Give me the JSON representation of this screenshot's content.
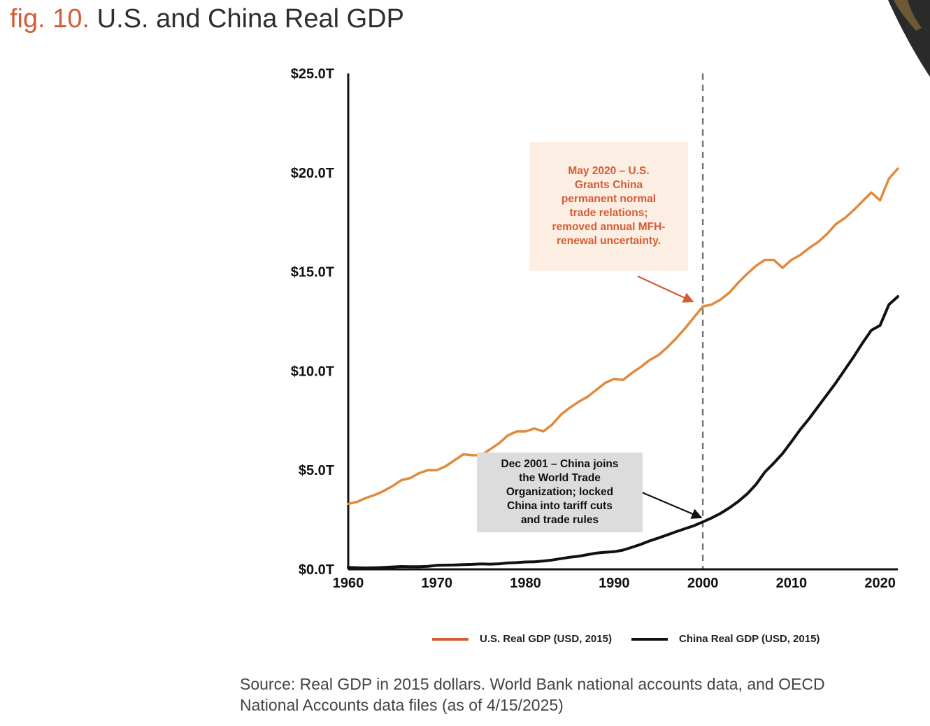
{
  "header": {
    "fig_number": "fig. 10.",
    "title": "U.S. and China Real GDP"
  },
  "colors": {
    "us": "#e08a3c",
    "china": "#111111",
    "accent": "#d35c36"
  },
  "chart_data": {
    "type": "line",
    "title": "U.S. and China Real GDP",
    "xlim": [
      1960,
      2022
    ],
    "ylim": [
      0,
      25
    ],
    "yticks": [
      {
        "value": 0,
        "label": "$0.0T"
      },
      {
        "value": 5,
        "label": "$5.0T"
      },
      {
        "value": 10,
        "label": "$10.0T"
      },
      {
        "value": 15,
        "label": "$15.0T"
      },
      {
        "value": 20,
        "label": "$20.0T"
      },
      {
        "value": 25,
        "label": "$25.0T"
      }
    ],
    "xticks": [
      {
        "value": 1960,
        "label": "1960"
      },
      {
        "value": 1970,
        "label": "1970"
      },
      {
        "value": 1980,
        "label": "1980"
      },
      {
        "value": 1990,
        "label": "1990"
      },
      {
        "value": 2000,
        "label": "2000"
      },
      {
        "value": 2010,
        "label": "2010"
      },
      {
        "value": 2020,
        "label": "2020"
      }
    ],
    "reference_line": {
      "x": 2000,
      "style": "dashed"
    },
    "series": [
      {
        "name": "U.S. Real GDP (USD, 2015)",
        "color": "#e08a3c",
        "x": [
          1960,
          1961,
          1962,
          1963,
          1964,
          1965,
          1966,
          1967,
          1968,
          1969,
          1970,
          1971,
          1972,
          1973,
          1974,
          1975,
          1976,
          1977,
          1978,
          1979,
          1980,
          1981,
          1982,
          1983,
          1984,
          1985,
          1986,
          1987,
          1988,
          1989,
          1990,
          1991,
          1992,
          1993,
          1994,
          1995,
          1996,
          1997,
          1998,
          1999,
          2000,
          2001,
          2002,
          2003,
          2004,
          2005,
          2006,
          2007,
          2008,
          2009,
          2010,
          2011,
          2012,
          2013,
          2014,
          2015,
          2016,
          2017,
          2018,
          2019,
          2020,
          2021,
          2022
        ],
        "values": [
          3.3,
          3.4,
          3.6,
          3.75,
          3.95,
          4.2,
          4.5,
          4.6,
          4.85,
          5.0,
          5.0,
          5.2,
          5.5,
          5.8,
          5.75,
          5.75,
          6.05,
          6.35,
          6.75,
          6.95,
          6.95,
          7.1,
          6.95,
          7.3,
          7.8,
          8.15,
          8.45,
          8.7,
          9.05,
          9.4,
          9.6,
          9.55,
          9.9,
          10.2,
          10.55,
          10.8,
          11.2,
          11.65,
          12.15,
          12.7,
          13.25,
          13.35,
          13.6,
          13.95,
          14.45,
          14.9,
          15.3,
          15.6,
          15.6,
          15.2,
          15.6,
          15.85,
          16.2,
          16.5,
          16.9,
          17.4,
          17.7,
          18.1,
          18.55,
          19.0,
          18.6,
          19.7,
          20.2
        ]
      },
      {
        "name": "China Real GDP (USD, 2015)",
        "color": "#111111",
        "x": [
          1960,
          1961,
          1962,
          1963,
          1964,
          1965,
          1966,
          1967,
          1968,
          1969,
          1970,
          1971,
          1972,
          1973,
          1974,
          1975,
          1976,
          1977,
          1978,
          1979,
          1980,
          1981,
          1982,
          1983,
          1984,
          1985,
          1986,
          1987,
          1988,
          1989,
          1990,
          1991,
          1992,
          1993,
          1994,
          1995,
          1996,
          1997,
          1998,
          1999,
          2000,
          2001,
          2002,
          2003,
          2004,
          2005,
          2006,
          2007,
          2008,
          2009,
          2010,
          2011,
          2012,
          2013,
          2014,
          2015,
          2016,
          2017,
          2018,
          2019,
          2020,
          2021,
          2022
        ],
        "values": [
          0.1,
          0.08,
          0.07,
          0.08,
          0.1,
          0.12,
          0.14,
          0.13,
          0.13,
          0.15,
          0.2,
          0.21,
          0.22,
          0.24,
          0.25,
          0.27,
          0.26,
          0.28,
          0.32,
          0.34,
          0.37,
          0.38,
          0.42,
          0.47,
          0.54,
          0.61,
          0.66,
          0.74,
          0.82,
          0.86,
          0.89,
          0.97,
          1.11,
          1.26,
          1.43,
          1.58,
          1.74,
          1.9,
          2.05,
          2.2,
          2.39,
          2.59,
          2.82,
          3.1,
          3.42,
          3.8,
          4.28,
          4.9,
          5.35,
          5.84,
          6.44,
          7.05,
          7.6,
          8.2,
          8.8,
          9.4,
          10.05,
          10.7,
          11.4,
          12.05,
          12.3,
          13.35,
          13.75
        ]
      }
    ],
    "annotations": [
      {
        "text": "May 2020 – U.S. Grants China permanent normal trade relations; removed annual MFH-renewal uncertainty.",
        "x": 2000,
        "y": 13.35
      },
      {
        "text": "Dec 2001 – China joins the World Trade Organization; locked China into tariff cuts and trade rules",
        "x": 2000,
        "y": 2.5
      }
    ],
    "legend_position": "bottom-right"
  },
  "annotations": {
    "us": [
      "May 2020 – U.S.",
      "Grants China",
      "permanent normal",
      "trade relations;",
      "removed annual MFH-",
      "renewal uncertainty."
    ],
    "china": [
      "Dec 2001 – China joins",
      "the World Trade",
      "Organization; locked",
      "China into tariff cuts",
      "and trade rules"
    ]
  },
  "legend": {
    "us_label": "U.S. Real GDP (USD, 2015)",
    "china_label": "China Real GDP (USD, 2015)"
  },
  "source": {
    "line1": "Source: Real GDP in 2015 dollars. World Bank national accounts data, and OECD",
    "line2": "National Accounts data files (as of 4/15/2025)"
  }
}
